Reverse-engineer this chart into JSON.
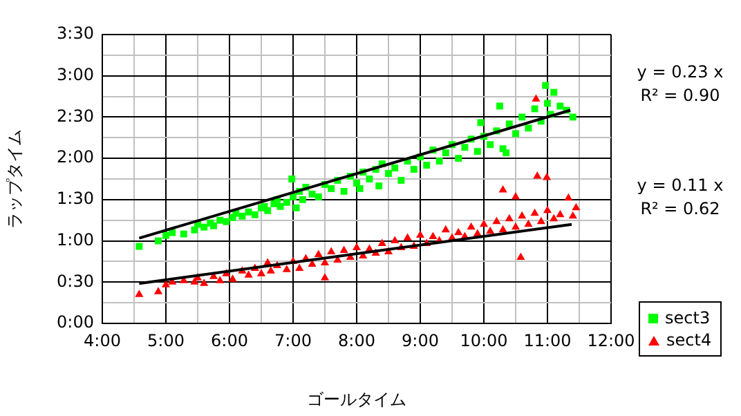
{
  "chart_data": {
    "type": "scatter",
    "xlabel": "ゴールタイム",
    "ylabel": "ラップタイム",
    "xlim": [
      4,
      12
    ],
    "xticks": [
      {
        "value": 4,
        "label": "4:00"
      },
      {
        "value": 4.5,
        "label": null
      },
      {
        "value": 5,
        "label": "5:00"
      },
      {
        "value": 5.5,
        "label": null
      },
      {
        "value": 6,
        "label": "6:00"
      },
      {
        "value": 6.5,
        "label": null
      },
      {
        "value": 7,
        "label": "7:00"
      },
      {
        "value": 7.5,
        "label": null
      },
      {
        "value": 8,
        "label": "8:00"
      },
      {
        "value": 8.5,
        "label": null
      },
      {
        "value": 9,
        "label": "9:00"
      },
      {
        "value": 9.5,
        "label": null
      },
      {
        "value": 10,
        "label": "10:00"
      },
      {
        "value": 10.5,
        "label": null
      },
      {
        "value": 11,
        "label": "11:00"
      },
      {
        "value": 11.5,
        "label": null
      },
      {
        "value": 12,
        "label": "12:00"
      }
    ],
    "ylim": [
      0,
      210
    ],
    "yticks": [
      {
        "value": 0,
        "label": "0:00"
      },
      {
        "value": 15,
        "label": null
      },
      {
        "value": 30,
        "label": "0:30"
      },
      {
        "value": 45,
        "label": null
      },
      {
        "value": 60,
        "label": "1:00"
      },
      {
        "value": 75,
        "label": null
      },
      {
        "value": 90,
        "label": "1:30"
      },
      {
        "value": 105,
        "label": null
      },
      {
        "value": 120,
        "label": "2:00"
      },
      {
        "value": 135,
        "label": null
      },
      {
        "value": 150,
        "label": "2:30"
      },
      {
        "value": 165,
        "label": null
      },
      {
        "value": 180,
        "label": "3:00"
      },
      {
        "value": 195,
        "label": null
      },
      {
        "value": 210,
        "label": "3:30"
      }
    ],
    "grid": true,
    "legend": "bottom right",
    "annotations": [
      "y = 0.23 x\nR² = 0.90",
      "y = 0.11 x\nR² = 0.62"
    ],
    "series": [
      {
        "name": "sect3",
        "color": "#00ff00",
        "marker": "square",
        "x": [
          4.58,
          4.88,
          5.0,
          5.1,
          5.28,
          5.45,
          5.5,
          5.6,
          5.7,
          5.75,
          5.85,
          5.95,
          6.05,
          6.1,
          6.2,
          6.3,
          6.4,
          6.5,
          6.55,
          6.6,
          6.7,
          6.75,
          6.8,
          6.9,
          6.98,
          7.0,
          7.05,
          7.1,
          7.15,
          7.2,
          7.3,
          7.4,
          7.5,
          7.6,
          7.7,
          7.8,
          7.9,
          8.0,
          8.05,
          8.1,
          8.2,
          8.3,
          8.35,
          8.4,
          8.5,
          8.6,
          8.7,
          8.8,
          8.9,
          9.0,
          9.1,
          9.2,
          9.3,
          9.4,
          9.5,
          9.6,
          9.7,
          9.8,
          9.9,
          9.95,
          10.0,
          10.1,
          10.2,
          10.25,
          10.3,
          10.35,
          10.4,
          10.5,
          10.6,
          10.7,
          10.8,
          10.9,
          10.97,
          11.0,
          11.05,
          11.1,
          11.2,
          11.3,
          11.4
        ],
        "values": [
          56,
          60,
          64,
          66,
          65,
          68,
          72,
          70,
          73,
          71,
          75,
          74,
          77,
          80,
          78,
          81,
          79,
          84,
          85,
          82,
          87,
          90,
          85,
          88,
          105,
          92,
          84,
          96,
          90,
          99,
          94,
          92,
          101,
          98,
          104,
          96,
          107,
          102,
          98,
          110,
          105,
          112,
          100,
          116,
          109,
          113,
          104,
          118,
          112,
          121,
          115,
          126,
          118,
          124,
          130,
          120,
          128,
          134,
          125,
          146,
          136,
          130,
          140,
          158,
          127,
          124,
          145,
          138,
          150,
          142,
          156,
          147,
          173,
          160,
          152,
          168,
          158,
          155,
          150
        ]
      },
      {
        "name": "sect4",
        "color": "#ff0000",
        "marker": "triangle",
        "x": [
          4.58,
          4.88,
          5.0,
          5.1,
          5.28,
          5.45,
          5.5,
          5.6,
          5.75,
          5.85,
          5.95,
          6.05,
          6.2,
          6.3,
          6.4,
          6.5,
          6.6,
          6.65,
          6.75,
          6.9,
          7.0,
          7.1,
          7.2,
          7.3,
          7.4,
          7.5,
          7.5,
          7.6,
          7.7,
          7.8,
          7.9,
          8.0,
          8.1,
          8.2,
          8.3,
          8.4,
          8.5,
          8.6,
          8.7,
          8.8,
          8.9,
          9.0,
          9.1,
          9.2,
          9.3,
          9.4,
          9.5,
          9.6,
          9.7,
          9.8,
          9.9,
          10.0,
          10.1,
          10.2,
          10.3,
          10.3,
          10.4,
          10.5,
          10.5,
          10.58,
          10.6,
          10.7,
          10.8,
          10.82,
          10.84,
          10.9,
          10.99,
          11.0,
          11.1,
          11.2,
          11.33,
          11.4,
          11.45
        ],
        "values": [
          21,
          23,
          28,
          30,
          31,
          30,
          33,
          29,
          34,
          31,
          36,
          32,
          38,
          35,
          40,
          36,
          44,
          38,
          42,
          39,
          45,
          40,
          47,
          43,
          50,
          44,
          33,
          52,
          46,
          53,
          48,
          55,
          49,
          54,
          51,
          58,
          52,
          60,
          55,
          62,
          56,
          64,
          58,
          63,
          60,
          68,
          62,
          66,
          63,
          70,
          65,
          72,
          67,
          74,
          68,
          97,
          76,
          70,
          92,
          48,
          78,
          72,
          80,
          163,
          107,
          74,
          106,
          82,
          76,
          79,
          91,
          78,
          84
        ]
      },
      {
        "type": "line",
        "color": "#000000",
        "marker": "none",
        "x": [
          4.58,
          11.36
        ],
        "values": [
          62,
          155
        ]
      },
      {
        "type": "line",
        "color": "#000000",
        "marker": "none",
        "x": [
          4.58,
          11.38
        ],
        "values": [
          29,
          72
        ]
      }
    ]
  }
}
